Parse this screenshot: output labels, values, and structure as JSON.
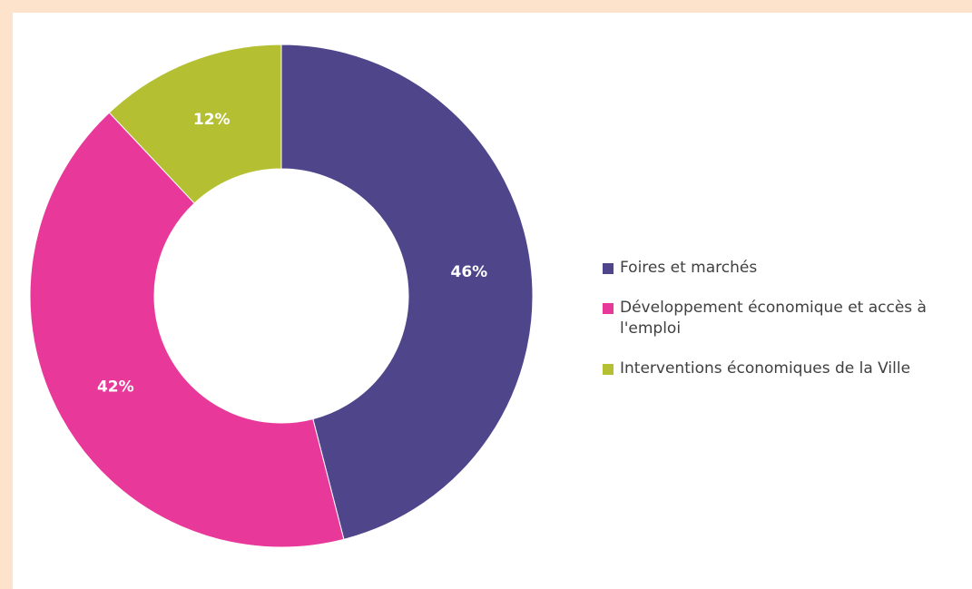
{
  "chart_data": {
    "type": "donut",
    "categories": [
      "Foires et marchés",
      "Développement économique et accès à l'emploi",
      "Interventions économiques de la Ville"
    ],
    "values": [
      46,
      42,
      12
    ],
    "value_labels": [
      "46%",
      "42%",
      "12%"
    ],
    "colors": [
      "#4f458b",
      "#e8399a",
      "#b5bf32"
    ],
    "legend": "right"
  }
}
